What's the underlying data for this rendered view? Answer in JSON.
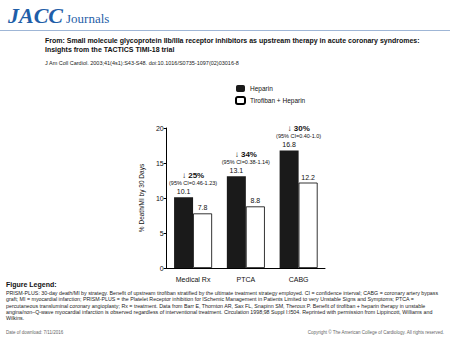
{
  "header": {
    "logo": "JACC",
    "logo_sub": "Journals",
    "title": "From: Small molecule glycoprotein IIb/IIIa receptor inhibitors as upstream therapy in acute coronary syndromes: Insights from the TACTICS TIMI-18 trial",
    "citation": "J Am Coll Cardiol. 2003;41(4s1):S43-S48. doi:10.1016/S0735-1097(02)03016-8"
  },
  "chart_data": {
    "type": "bar",
    "categories": [
      "Medical Rx",
      "PTCA",
      "CABG"
    ],
    "series": [
      {
        "name": "Heparin",
        "color": "#1a1a1a",
        "values": [
          10.1,
          13.1,
          16.8
        ]
      },
      {
        "name": "Tirofiban + Heparin",
        "color": "#ffffff",
        "values": [
          7.8,
          8.8,
          12.2
        ]
      }
    ],
    "y_label": "% Death/MI by 30 Days",
    "ylim": [
      0,
      20
    ],
    "yticks": [
      0,
      5,
      10,
      15,
      20
    ],
    "grid": false,
    "legend": "top-right",
    "data_labels": true,
    "annotations": [
      {
        "category": "Medical Rx",
        "lines": [
          "↓ 25%",
          "(95% CI=0.46-1.23)"
        ]
      },
      {
        "category": "PTCA",
        "lines": [
          "↓ 34%",
          "(95% CI=0.38-1.14)"
        ]
      },
      {
        "category": "CABG",
        "lines": [
          "↓ 30%",
          "(95% CI=0.40-1.0)"
        ]
      }
    ]
  },
  "figure_legend": {
    "label": "Figure Legend:",
    "text": "PRISM-PLUS: 30-day death/MI by strategy. Benefit of upstream tirofiban stratified by the ultimate treatment strategy employed. CI = confidence interval; CABG = coronary artery bypass graft; MI = myocardial infarction; PRISM-PLUS = the Platelet Receptor inhibition for ISchemic Management in Patients Limited to very Unstable Signs and Symptoms; PTCA = percutaneous transluminal coronary angioplasty; Rx = treatment. Data from Barr E, Thornton AR, Sax FL, Snapinn SM, Theroux P. Benefit of tirofiban + heparin therapy in unstable angina/non–Q-wave myocardial infarction is observed regardless of interventional treatment. Circulation 1998;98 Suppl I:I504. Reprinted with permission from Lippincott, Williams and Wilkins."
  },
  "footer": {
    "date": "Date of download: 7/11/2016",
    "copyright": "Copyright © The American College of Cardiology. All rights reserved."
  }
}
